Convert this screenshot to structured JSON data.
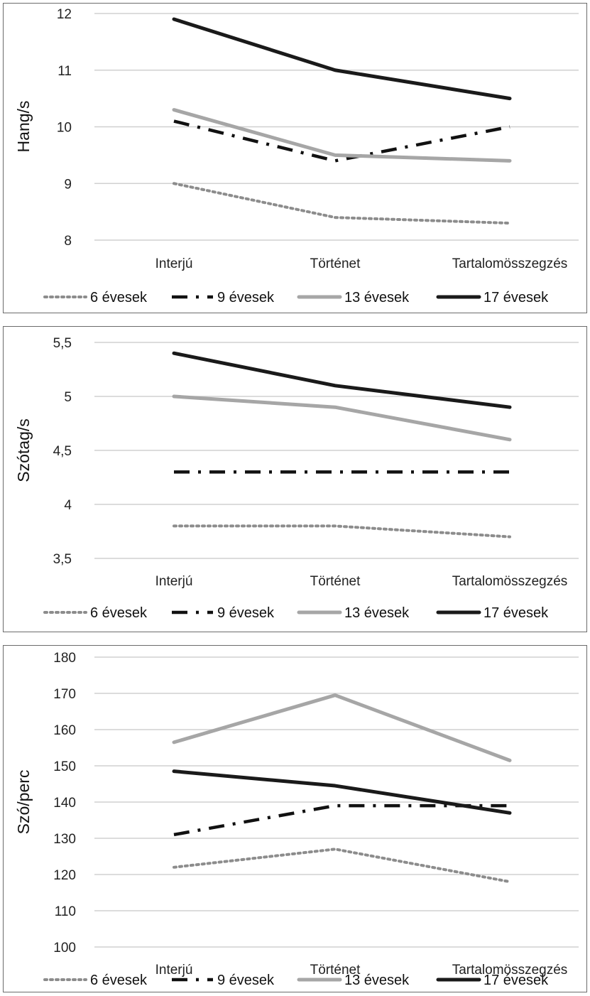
{
  "chart_data": [
    {
      "type": "line",
      "ylabel": "Hang/s",
      "xlabel": "",
      "categories": [
        "Interjú",
        "Történet",
        "Tartalomösszegzés"
      ],
      "ylim": [
        8,
        12
      ],
      "yticks": [
        8,
        9,
        10,
        11,
        12
      ],
      "grid": true,
      "legend_position": "bottom",
      "series": [
        {
          "name": "6 évesek",
          "values": [
            9.0,
            8.4,
            8.3
          ],
          "color": "#8c8c8c",
          "style": "dotted"
        },
        {
          "name": "9 évesek",
          "values": [
            10.1,
            9.4,
            10.0
          ],
          "color": "#111111",
          "style": "dashdot"
        },
        {
          "name": "13 évesek",
          "values": [
            10.3,
            9.5,
            9.4
          ],
          "color": "#a6a6a6",
          "style": "solid"
        },
        {
          "name": "17 évesek",
          "values": [
            11.9,
            11.0,
            10.5
          ],
          "color": "#1a1a1a",
          "style": "solid"
        }
      ]
    },
    {
      "type": "line",
      "ylabel": "Szótag/s",
      "xlabel": "",
      "categories": [
        "Interjú",
        "Történet",
        "Tartalomösszegzés"
      ],
      "ylim": [
        3.5,
        5.5
      ],
      "yticks": [
        3.5,
        4,
        4.5,
        5,
        5.5
      ],
      "ytick_labels": [
        "3,5",
        "4",
        "4,5",
        "5",
        "5,5"
      ],
      "grid": true,
      "legend_position": "bottom",
      "series": [
        {
          "name": "6 évesek",
          "values": [
            3.8,
            3.8,
            3.7
          ],
          "color": "#8c8c8c",
          "style": "dotted"
        },
        {
          "name": "9 évesek",
          "values": [
            4.3,
            4.3,
            4.3
          ],
          "color": "#111111",
          "style": "dashdot"
        },
        {
          "name": "13 évesek",
          "values": [
            5.0,
            4.9,
            4.6
          ],
          "color": "#a6a6a6",
          "style": "solid"
        },
        {
          "name": "17 évesek",
          "values": [
            5.4,
            5.1,
            4.9
          ],
          "color": "#1a1a1a",
          "style": "solid"
        }
      ]
    },
    {
      "type": "line",
      "ylabel": "Szó/perc",
      "xlabel": "",
      "categories": [
        "Interjú",
        "Történet",
        "Tartalomösszegzés"
      ],
      "ylim": [
        100,
        180
      ],
      "yticks": [
        100,
        110,
        120,
        130,
        140,
        150,
        160,
        170,
        180
      ],
      "grid": true,
      "legend_position": "bottom",
      "series": [
        {
          "name": "6 évesek",
          "values": [
            122,
            127,
            118
          ],
          "color": "#8c8c8c",
          "style": "dotted"
        },
        {
          "name": "9 évesek",
          "values": [
            131,
            139,
            139
          ],
          "color": "#111111",
          "style": "dashdot"
        },
        {
          "name": "13 évesek",
          "values": [
            156.5,
            169.5,
            151.5
          ],
          "color": "#a6a6a6",
          "style": "solid"
        },
        {
          "name": "17 évesek",
          "values": [
            148.5,
            144.5,
            137
          ],
          "color": "#1a1a1a",
          "style": "solid"
        }
      ]
    }
  ]
}
